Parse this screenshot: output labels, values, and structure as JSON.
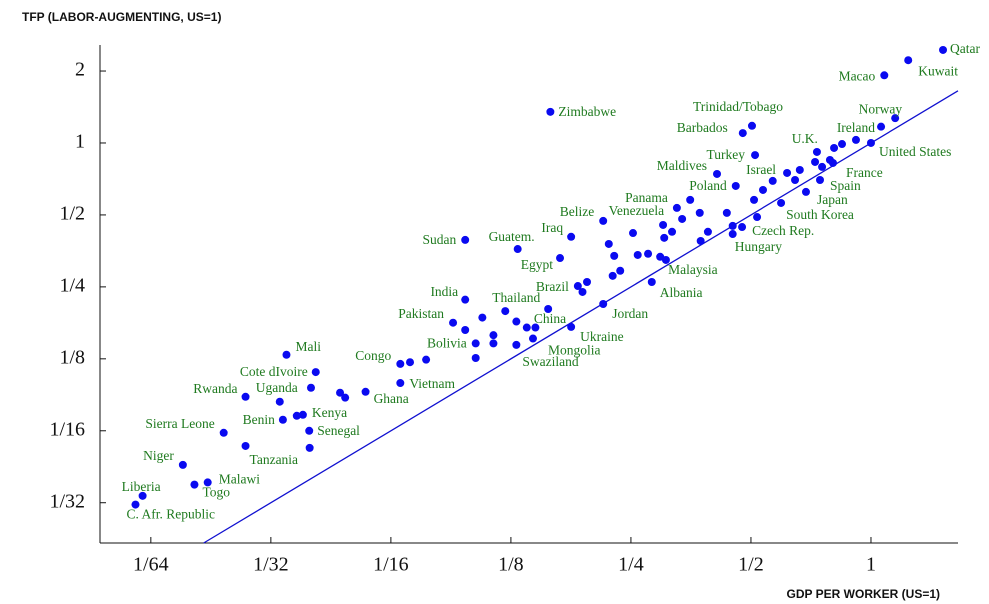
{
  "chart_data": {
    "type": "scatter",
    "y_label": "TFP (LABOR-AUGMENTING, US=1)",
    "x_label": "GDP PER WORKER (US=1)",
    "xscale": "log",
    "yscale": "log",
    "color": "#0a0af0",
    "label_color": "#1f7a1f",
    "xlim": [
      0.01165,
      1.653
    ],
    "ylim": [
      0.0212,
      2.57
    ],
    "xticks": [
      {
        "value": 0.015625,
        "label": "1/64"
      },
      {
        "value": 0.03125,
        "label": "1/32"
      },
      {
        "value": 0.0625,
        "label": "1/16"
      },
      {
        "value": 0.125,
        "label": "1/8"
      },
      {
        "value": 0.25,
        "label": "1/4"
      },
      {
        "value": 0.5,
        "label": "1/2"
      },
      1
    ],
    "yticks": [
      {
        "value": 0.03125,
        "label": "1/32"
      },
      {
        "value": 0.0625,
        "label": "1/16"
      },
      {
        "value": 0.125,
        "label": "1/8"
      },
      {
        "value": 0.25,
        "label": "1/4"
      },
      {
        "value": 0.5,
        "label": "1/2"
      },
      1,
      2
    ],
    "labels": [
      "Qatar",
      "Kuwait",
      "Macao",
      "Norway",
      "Ireland",
      "United States",
      "Zimbabwe",
      "Trinidad/Tobago",
      "Barbados",
      "Turkey",
      "Maldives",
      "Poland",
      "U.K.",
      "Israel",
      "France",
      "Spain",
      "Japan",
      "South Korea",
      "Czech Rep.",
      "Hungary",
      "Panama",
      "Venezuela",
      "Belize",
      "Iraq",
      "Sudan",
      "Guatem.",
      "Egypt",
      "Malaysia",
      "Albania",
      "Brazil",
      "India",
      "Thailand",
      "Pakistan",
      "China",
      "Jordan",
      "Ukraine",
      "Mongolia",
      "Swaziland",
      "Bolivia",
      "Congo",
      "Vietnam",
      "Mali",
      "Cote dIvoire",
      "Rwanda",
      "Uganda",
      "Ghana",
      "Kenya",
      "Benin",
      "Senegal",
      "Sierra Leone",
      "Tanzania",
      "Niger",
      "Malawi",
      "Togo",
      "Liberia",
      "C. Afr. Republic",
      null,
      null,
      null,
      null,
      null,
      null,
      null,
      null,
      null,
      null,
      null,
      null,
      null,
      null,
      null,
      null,
      null,
      null,
      null,
      null,
      null,
      null,
      null,
      null,
      null,
      null,
      null,
      null,
      null,
      null,
      null,
      null,
      null,
      null,
      null,
      null,
      null,
      null,
      null,
      null,
      null,
      null,
      null,
      null,
      null,
      null
    ],
    "x": [
      1.516,
      1.24,
      1.08,
      1.15,
      1.06,
      1,
      0.157,
      0.503,
      0.477,
      0.512,
      0.411,
      0.458,
      0.732,
      0.616,
      0.803,
      0.745,
      0.687,
      0.595,
      0.475,
      0.45,
      0.326,
      0.301,
      0.213,
      0.177,
      0.096,
      0.13,
      0.166,
      0.296,
      0.282,
      0.184,
      0.096,
      0.121,
      0.0895,
      0.155,
      0.213,
      0.177,
      0.142,
      0.129,
      0.102,
      0.066,
      0.066,
      0.0342,
      0.0405,
      0.027,
      0.0329,
      0.054,
      0.0376,
      0.0335,
      0.039,
      0.0238,
      0.027,
      0.0188,
      0.0217,
      0.0201,
      0.0149,
      0.0143,
      0.0394,
      0.0466,
      0.048,
      0.0363,
      0.0391,
      0.0698,
      0.0766,
      0.102,
      0.096,
      0.113,
      0.106,
      0.129,
      0.137,
      0.144,
      0.189,
      0.194,
      0.225,
      0.235,
      0.26,
      0.276,
      0.306,
      0.227,
      0.22,
      0.253,
      0.303,
      0.317,
      0.336,
      0.372,
      0.374,
      0.39,
      0.435,
      0.509,
      0.518,
      0.536,
      0.567,
      0.645,
      0.663,
      0.724,
      0.754,
      0.789,
      0.808,
      0.846,
      0.917,
      0.352,
      0.45,
      0.113
    ],
    "values": [
      2.45,
      2.22,
      1.92,
      1.27,
      1.17,
      1,
      1.35,
      1.18,
      1.1,
      0.89,
      0.742,
      0.661,
      0.917,
      0.749,
      0.825,
      0.7,
      0.624,
      0.561,
      0.445,
      0.416,
      0.535,
      0.454,
      0.472,
      0.405,
      0.393,
      0.36,
      0.33,
      0.334,
      0.262,
      0.252,
      0.221,
      0.198,
      0.177,
      0.202,
      0.212,
      0.17,
      0.152,
      0.143,
      0.145,
      0.119,
      0.099,
      0.13,
      0.11,
      0.0867,
      0.0827,
      0.091,
      0.0729,
      0.0695,
      0.0625,
      0.0613,
      0.054,
      0.045,
      0.038,
      0.0372,
      0.0334,
      0.0307,
      0.0946,
      0.0902,
      0.086,
      0.0722,
      0.053,
      0.121,
      0.124,
      0.126,
      0.165,
      0.157,
      0.186,
      0.179,
      0.169,
      0.169,
      0.238,
      0.262,
      0.278,
      0.292,
      0.34,
      0.344,
      0.324,
      0.337,
      0.378,
      0.42,
      0.401,
      0.425,
      0.481,
      0.51,
      0.389,
      0.425,
      0.51,
      0.578,
      0.49,
      0.636,
      0.694,
      0.7,
      0.771,
      0.833,
      0.794,
      0.849,
      0.953,
      0.99,
      1.03,
      0.578,
      0.45,
      0.145
    ]
  }
}
